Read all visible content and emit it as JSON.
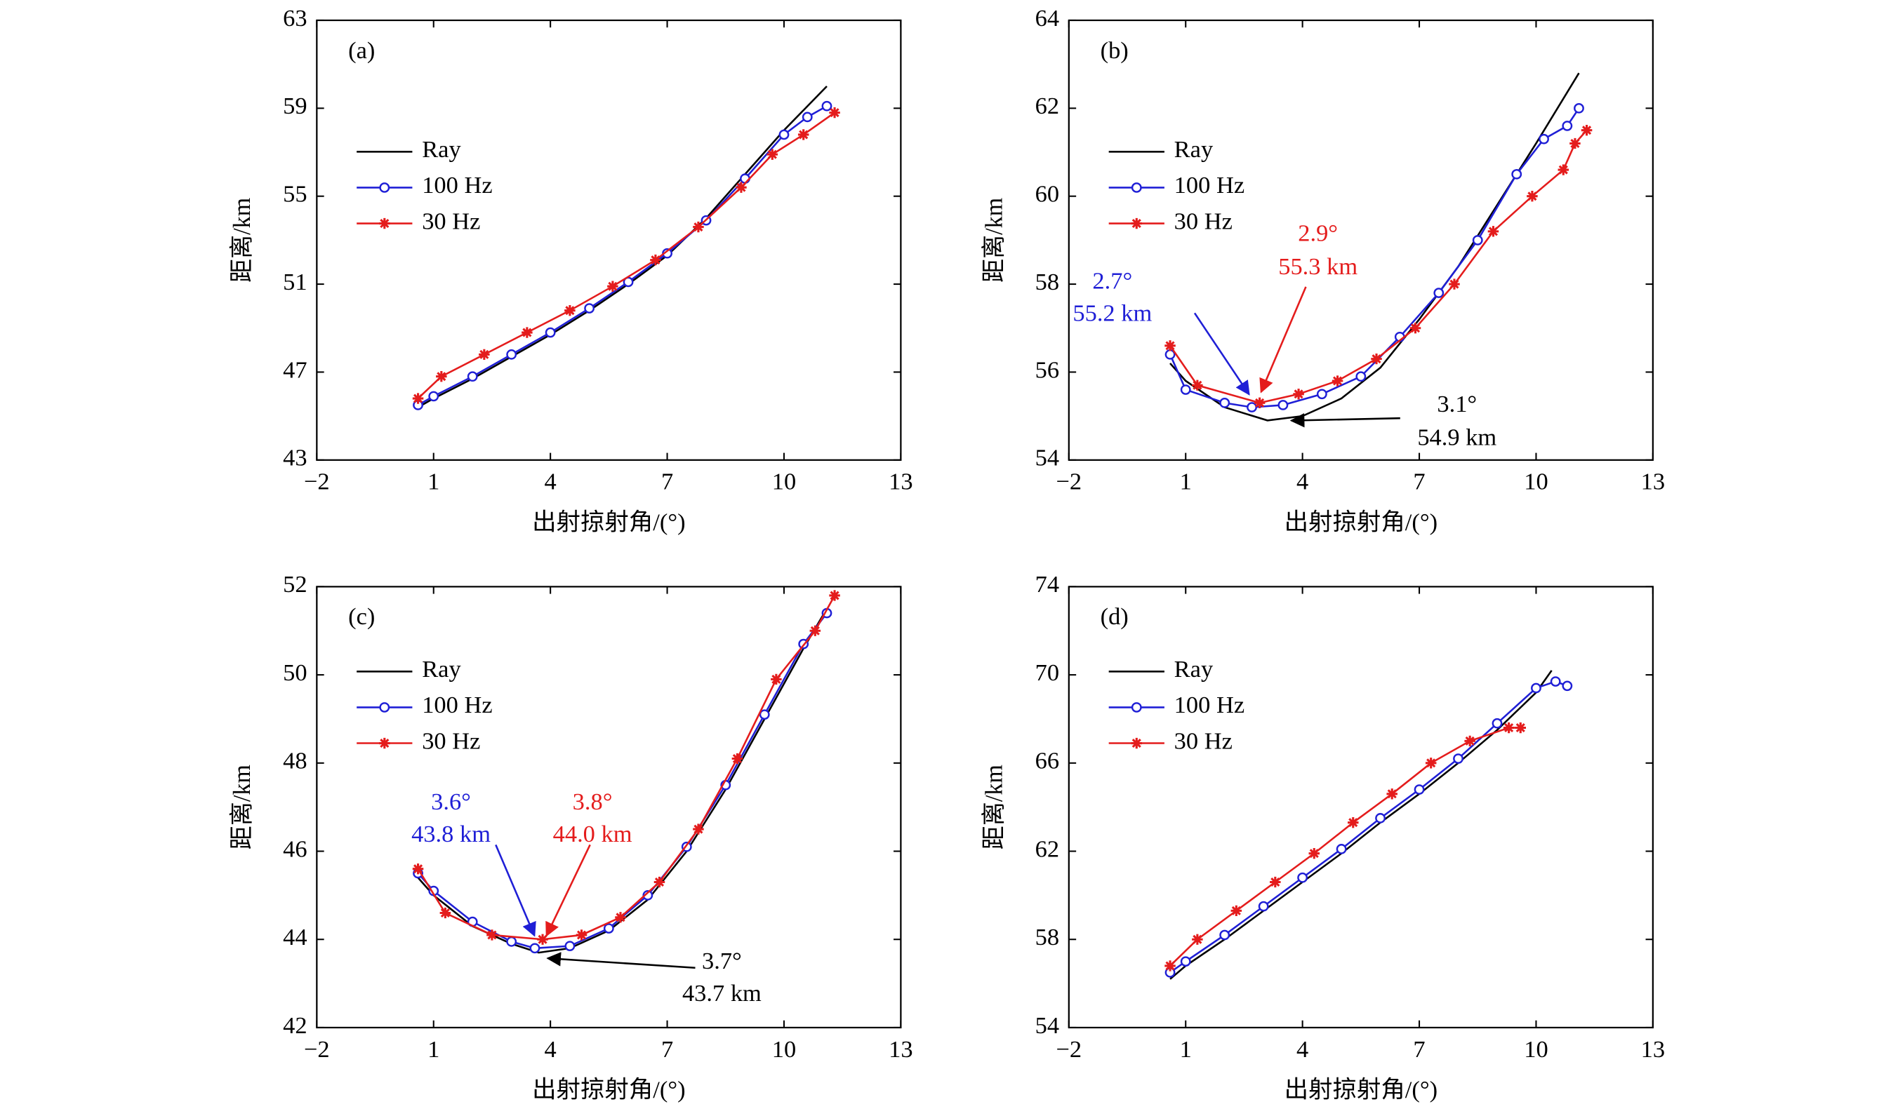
{
  "chart_data": [
    {
      "type": "line",
      "panel_label": "(a)",
      "x_label": "出射掠射角/(°)",
      "y_label": "距离/km",
      "legend": "upper left",
      "xlim": [
        -2,
        13
      ],
      "xticks": [
        {
          "value": -2,
          "label": "−2"
        },
        1,
        4,
        7,
        10,
        13
      ],
      "ylim": [
        43,
        63
      ],
      "yticks": [
        43,
        47,
        51,
        55,
        59,
        63
      ],
      "series": [
        {
          "name": "Ray",
          "color": "#000000",
          "marker": "none",
          "x": [
            0.6,
            1,
            2,
            3,
            4,
            5,
            6,
            7,
            8,
            9,
            10,
            11.1
          ],
          "values": [
            45.4,
            45.8,
            46.7,
            47.7,
            48.7,
            49.8,
            51.0,
            52.3,
            54.0,
            56.0,
            58.0,
            60.0
          ]
        },
        {
          "name": "100 Hz",
          "color": "#1f1fd6",
          "marker": "circle",
          "x": [
            0.6,
            1,
            2,
            3,
            4,
            5,
            6,
            7,
            8,
            9,
            10,
            10.6,
            11.1
          ],
          "values": [
            45.5,
            45.9,
            46.8,
            47.8,
            48.8,
            49.9,
            51.1,
            52.4,
            53.9,
            55.8,
            57.8,
            58.6,
            59.1
          ]
        },
        {
          "name": "30 Hz",
          "color": "#e41c1c",
          "marker": "star",
          "x": [
            0.6,
            1.2,
            2.3,
            3.4,
            4.5,
            5.6,
            6.7,
            7.8,
            8.9,
            9.7,
            10.5,
            11.3
          ],
          "values": [
            45.8,
            46.8,
            47.8,
            48.8,
            49.8,
            50.9,
            52.1,
            53.6,
            55.4,
            56.9,
            57.8,
            58.8
          ]
        }
      ],
      "annotations": []
    },
    {
      "type": "line",
      "panel_label": "(b)",
      "x_label": "出射掠射角/(°)",
      "y_label": "距离/km",
      "legend": "upper left",
      "xlim": [
        -2,
        13
      ],
      "xticks": [
        {
          "value": -2,
          "label": "−2"
        },
        1,
        4,
        7,
        10,
        13
      ],
      "ylim": [
        54,
        64
      ],
      "yticks": [
        54,
        56,
        58,
        60,
        62,
        64
      ],
      "series": [
        {
          "name": "Ray",
          "color": "#000000",
          "marker": "none",
          "x": [
            0.6,
            1,
            2,
            3.1,
            4,
            5,
            6,
            7,
            8,
            9,
            10,
            11.1
          ],
          "values": [
            56.2,
            55.8,
            55.2,
            54.9,
            55.0,
            55.4,
            56.1,
            57.2,
            58.4,
            59.8,
            61.2,
            62.8
          ]
        },
        {
          "name": "100 Hz",
          "color": "#1f1fd6",
          "marker": "circle",
          "x": [
            0.6,
            1,
            2,
            2.7,
            3.5,
            4.5,
            5.5,
            6.5,
            7.5,
            8.5,
            9.5,
            10.2,
            10.8,
            11.1
          ],
          "values": [
            56.4,
            55.6,
            55.3,
            55.2,
            55.25,
            55.5,
            55.9,
            56.8,
            57.8,
            59.0,
            60.5,
            61.3,
            61.6,
            62.0
          ]
        },
        {
          "name": "30 Hz",
          "color": "#e41c1c",
          "marker": "star",
          "x": [
            0.6,
            1.3,
            2.9,
            3.9,
            4.9,
            5.9,
            6.9,
            7.9,
            8.9,
            9.9,
            10.7,
            11.0,
            11.3
          ],
          "values": [
            56.6,
            55.7,
            55.3,
            55.5,
            55.8,
            56.3,
            57.0,
            58.0,
            59.2,
            60.0,
            60.6,
            61.2,
            61.5
          ]
        }
      ],
      "annotations": [
        {
          "lines": [
            "2.7°",
            "55.2 km"
          ],
          "color": "#1f1fd6"
        },
        {
          "lines": [
            "2.9°",
            "55.3 km"
          ],
          "color": "#e41c1c"
        },
        {
          "lines": [
            "3.1°",
            "54.9 km"
          ],
          "color": "#000000"
        }
      ]
    },
    {
      "type": "line",
      "panel_label": "(c)",
      "x_label": "出射掠射角/(°)",
      "y_label": "距离/km",
      "legend": "upper left",
      "xlim": [
        -2,
        13
      ],
      "xticks": [
        {
          "value": -2,
          "label": "−2"
        },
        1,
        4,
        7,
        10,
        13
      ],
      "ylim": [
        42,
        52
      ],
      "yticks": [
        42,
        44,
        46,
        48,
        50,
        52
      ],
      "series": [
        {
          "name": "Ray",
          "color": "#000000",
          "marker": "none",
          "x": [
            0.6,
            1,
            2,
            3,
            3.7,
            4.5,
            5.5,
            6.5,
            7.5,
            8.5,
            9.5,
            10.5,
            11.1
          ],
          "values": [
            45.4,
            45.0,
            44.3,
            43.9,
            43.7,
            43.8,
            44.2,
            44.9,
            46.0,
            47.4,
            49.0,
            50.6,
            51.5
          ]
        },
        {
          "name": "100 Hz",
          "color": "#1f1fd6",
          "marker": "circle",
          "x": [
            0.6,
            1,
            2,
            3,
            3.6,
            4.5,
            5.5,
            6.5,
            7.5,
            8.5,
            9.5,
            10.5,
            11.1
          ],
          "values": [
            45.5,
            45.1,
            44.4,
            43.95,
            43.8,
            43.85,
            44.25,
            45.0,
            46.1,
            47.5,
            49.1,
            50.7,
            51.4
          ]
        },
        {
          "name": "30 Hz",
          "color": "#e41c1c",
          "marker": "star",
          "x": [
            0.6,
            1.3,
            2.5,
            3.8,
            4.8,
            5.8,
            6.8,
            7.8,
            8.8,
            9.8,
            10.8,
            11.3
          ],
          "values": [
            45.6,
            44.6,
            44.1,
            44.0,
            44.1,
            44.5,
            45.3,
            46.5,
            48.1,
            49.9,
            51.0,
            51.8
          ]
        }
      ],
      "annotations": [
        {
          "lines": [
            "3.6°",
            "43.8 km"
          ],
          "color": "#1f1fd6"
        },
        {
          "lines": [
            "3.8°",
            "44.0 km"
          ],
          "color": "#e41c1c"
        },
        {
          "lines": [
            "3.7°",
            "43.7 km"
          ],
          "color": "#000000"
        }
      ]
    },
    {
      "type": "line",
      "panel_label": "(d)",
      "x_label": "出射掠射角/(°)",
      "y_label": "距离/km",
      "legend": "upper left",
      "xlim": [
        -2,
        13
      ],
      "xticks": [
        {
          "value": -2,
          "label": "−2"
        },
        1,
        4,
        7,
        10,
        13
      ],
      "ylim": [
        54,
        74
      ],
      "yticks": [
        54,
        58,
        62,
        66,
        70,
        74
      ],
      "series": [
        {
          "name": "Ray",
          "color": "#000000",
          "marker": "none",
          "x": [
            0.6,
            1,
            2,
            3,
            4,
            5,
            6,
            7,
            8,
            9,
            10,
            10.4
          ],
          "values": [
            56.2,
            56.8,
            58.0,
            59.3,
            60.6,
            61.9,
            63.3,
            64.6,
            66.0,
            67.5,
            69.2,
            70.2
          ]
        },
        {
          "name": "100 Hz",
          "color": "#1f1fd6",
          "marker": "circle",
          "x": [
            0.6,
            1,
            2,
            3,
            4,
            5,
            6,
            7,
            8,
            9,
            10,
            10.5,
            10.8
          ],
          "values": [
            56.5,
            57.0,
            58.2,
            59.5,
            60.8,
            62.1,
            63.5,
            64.8,
            66.2,
            67.8,
            69.4,
            69.7,
            69.5
          ]
        },
        {
          "name": "30 Hz",
          "color": "#e41c1c",
          "marker": "star",
          "x": [
            0.6,
            1.3,
            2.3,
            3.3,
            4.3,
            5.3,
            6.3,
            7.3,
            8.3,
            9.3,
            9.6
          ],
          "values": [
            56.8,
            58.0,
            59.3,
            60.6,
            61.9,
            63.3,
            64.6,
            66.0,
            67.0,
            67.6,
            67.6
          ]
        }
      ],
      "annotations": []
    }
  ]
}
